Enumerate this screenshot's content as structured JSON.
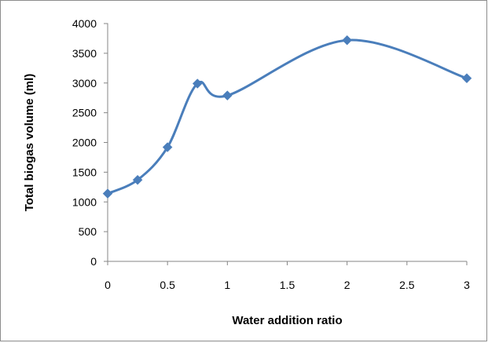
{
  "chart_data": {
    "type": "line",
    "title": "",
    "xlabel": "Water addition ratio",
    "ylabel": "Total biogas volume (ml)",
    "xlim": [
      0,
      3
    ],
    "ylim": [
      0,
      4000
    ],
    "x_ticks": [
      0,
      0.5,
      1,
      1.5,
      2,
      2.5,
      3
    ],
    "y_ticks": [
      0,
      500,
      1000,
      1500,
      2000,
      2500,
      3000,
      3500,
      4000
    ],
    "grid": false,
    "legend": "none",
    "smoothed": true,
    "marker": "diamond",
    "series": [
      {
        "color": "#4a7ebb",
        "x": [
          0,
          0.25,
          0.5,
          0.75,
          1,
          2,
          3
        ],
        "y": [
          1140,
          1370,
          1920,
          2990,
          2790,
          3720,
          3080
        ]
      }
    ]
  }
}
